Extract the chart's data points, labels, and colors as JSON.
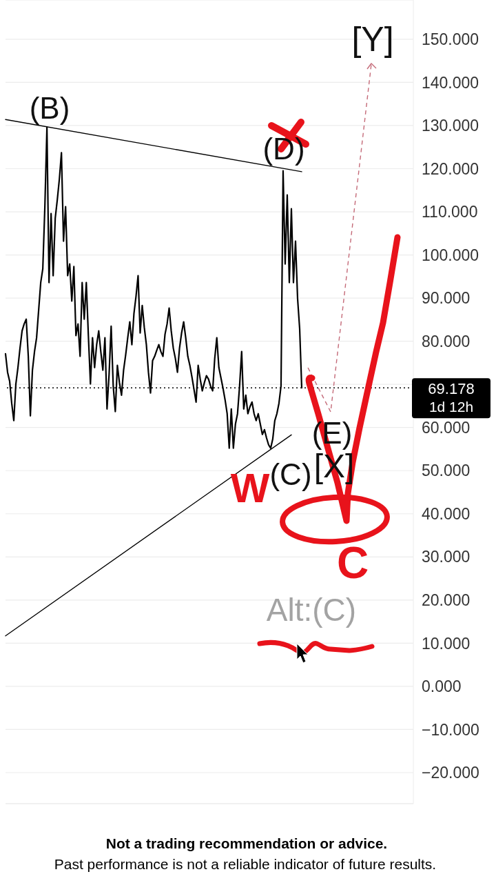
{
  "chart_data": {
    "type": "line",
    "categories": [
      null,
      null,
      null,
      null,
      null,
      null,
      null,
      null,
      null,
      null,
      null,
      null,
      null,
      null,
      null,
      null,
      null,
      null,
      null,
      null,
      null,
      null,
      null,
      null,
      null,
      null,
      null,
      null,
      null,
      null,
      null,
      null,
      null,
      null,
      null,
      null,
      null,
      null,
      null,
      null,
      null,
      null,
      null,
      null,
      null,
      null,
      null,
      null,
      null,
      null,
      null,
      null,
      null,
      null,
      null,
      null,
      null,
      null,
      null,
      null,
      null,
      null,
      null,
      null,
      null,
      null,
      null,
      null,
      null,
      null,
      null,
      null,
      null,
      null,
      null,
      null,
      null,
      null,
      null,
      null,
      null,
      null,
      null,
      null,
      null,
      null,
      null,
      null,
      null,
      null,
      null,
      null,
      null,
      null,
      null,
      null,
      null,
      null,
      null,
      null,
      null,
      null,
      null,
      null,
      null,
      null,
      null,
      null,
      null,
      null,
      null,
      null,
      null,
      null,
      null,
      null,
      null,
      null,
      null,
      null,
      null,
      null,
      null,
      null,
      null,
      null,
      null,
      null,
      null,
      null,
      null,
      null,
      null,
      null,
      null,
      null,
      null,
      null,
      null,
      null,
      null,
      null,
      null,
      null
    ],
    "series": [
      {
        "color": "#000000",
        "values": [
          77.1,
          72.8,
          70.7,
          65.6,
          61.6,
          70.1,
          73.9,
          78.4,
          82.4,
          84.0,
          85.1,
          76.5,
          62.7,
          73.3,
          77.6,
          80.8,
          87.2,
          93.6,
          96.8,
          111.2,
          129.6,
          93.6,
          109.6,
          95.2,
          108.5,
          112.8,
          117.6,
          123.7,
          103.2,
          111.2,
          95.2,
          97.9,
          89.3,
          97.3,
          81.3,
          84.0,
          76.5,
          93.6,
          85.1,
          93.6,
          81.3,
          70.1,
          80.8,
          73.9,
          79.2,
          82.4,
          77.6,
          73.3,
          80.8,
          64.3,
          72.3,
          83.5,
          69.6,
          63.7,
          74.4,
          70.4,
          67.5,
          73.3,
          76.8,
          80.8,
          84.5,
          79.2,
          86.4,
          90.4,
          95.2,
          81.9,
          88.3,
          83.2,
          79.2,
          72.8,
          68.0,
          75.5,
          76.5,
          77.9,
          79.2,
          77.6,
          76.5,
          81.6,
          84.0,
          87.7,
          82.4,
          78.4,
          76.0,
          72.8,
          78.4,
          81.9,
          84.5,
          80.8,
          76.5,
          74.4,
          71.7,
          68.8,
          65.9,
          74.4,
          71.2,
          68.5,
          70.4,
          72.0,
          71.2,
          69.6,
          68.5,
          76.0,
          80.8,
          73.9,
          71.5,
          69.1,
          66.4,
          63.2,
          55.2,
          64.3,
          55.2,
          60.8,
          63.2,
          69.6,
          77.6,
          64.3,
          67.5,
          63.2,
          64.8,
          65.9,
          63.2,
          61.6,
          63.2,
          60.8,
          58.4,
          59.5,
          57.6,
          56.0,
          55.2,
          57.3,
          61.6,
          63.2,
          65.6,
          69.6,
          119.5,
          97.9,
          113.9,
          93.6,
          110.7,
          93.6,
          103.2,
          89.9,
          82.9,
          69.2
        ]
      },
      {
        "color": "#000000",
        "values": [
          131.4,
          null,
          null,
          null,
          null,
          null,
          null,
          null,
          null,
          null,
          null,
          null,
          null,
          null,
          null,
          null,
          null,
          null,
          null,
          null,
          null,
          null,
          null,
          null,
          null,
          null,
          null,
          null,
          null,
          null,
          null,
          null,
          null,
          null,
          null,
          null,
          null,
          null,
          null,
          null,
          null,
          null,
          null,
          null,
          null,
          null,
          null,
          null,
          null,
          null,
          null,
          null,
          null,
          null,
          null,
          null,
          null,
          null,
          null,
          null,
          null,
          null,
          null,
          null,
          null,
          null,
          null,
          null,
          null,
          null,
          null,
          null,
          null,
          null,
          null,
          null,
          null,
          null,
          null,
          null,
          null,
          null,
          null,
          null,
          null,
          null,
          null,
          null,
          null,
          null,
          null,
          null,
          null,
          null,
          null,
          null,
          null,
          null,
          null,
          null,
          null,
          null,
          null,
          null,
          null,
          null,
          null,
          null,
          null,
          null,
          null,
          null,
          null,
          null,
          null,
          null,
          null,
          null,
          null,
          null,
          null,
          null,
          null,
          null,
          null,
          null,
          null,
          null,
          null,
          null,
          null,
          null,
          null,
          null,
          null,
          null,
          null,
          null,
          null,
          null,
          null,
          null,
          null,
          119.3
        ]
      },
      {
        "color": "#000000",
        "values": [
          11.7,
          null,
          null,
          null,
          null,
          null,
          null,
          null,
          null,
          null,
          null,
          null,
          null,
          null,
          null,
          null,
          null,
          null,
          null,
          null,
          null,
          null,
          null,
          null,
          null,
          null,
          null,
          null,
          null,
          null,
          null,
          null,
          null,
          null,
          null,
          null,
          null,
          null,
          null,
          null,
          null,
          null,
          null,
          null,
          null,
          null,
          null,
          null,
          null,
          null,
          null,
          null,
          null,
          null,
          null,
          null,
          null,
          null,
          null,
          null,
          null,
          null,
          null,
          null,
          null,
          null,
          null,
          null,
          null,
          null,
          null,
          null,
          null,
          null,
          null,
          null,
          null,
          null,
          null,
          null,
          null,
          null,
          null,
          null,
          null,
          null,
          null,
          null,
          null,
          null,
          null,
          null,
          null,
          null,
          null,
          null,
          null,
          null,
          null,
          null,
          null,
          null,
          null,
          null,
          null,
          null,
          null,
          null,
          null,
          null,
          null,
          null,
          null,
          null,
          null,
          null,
          null,
          null,
          null,
          null,
          null,
          null,
          null,
          null,
          null,
          null,
          null,
          null,
          null,
          null,
          null,
          null,
          null,
          null,
          null,
          null,
          null,
          null,
          58.3,
          null,
          null,
          null,
          null,
          null
        ]
      }
    ],
    "ylim": [
      -27.2,
      159.1
    ],
    "yticks": [
      {
        "value": 150,
        "label": "150.000"
      },
      {
        "value": 140,
        "label": "140.000"
      },
      {
        "value": 130,
        "label": "130.000"
      },
      {
        "value": 120,
        "label": "120.000"
      },
      {
        "value": 110,
        "label": "110.000"
      },
      {
        "value": 100,
        "label": "100.000"
      },
      {
        "value": 90,
        "label": "90.000"
      },
      {
        "value": 80,
        "label": "80.000"
      },
      {
        "value": 70,
        "label": null
      },
      {
        "value": 60,
        "label": "60.000"
      },
      {
        "value": 50,
        "label": "50.000"
      },
      {
        "value": 40,
        "label": "40.000"
      },
      {
        "value": 30,
        "label": "30.000"
      },
      {
        "value": 20,
        "label": "20.000"
      },
      {
        "value": 10,
        "label": "10.000"
      },
      {
        "value": 0,
        "label": "0.000"
      },
      {
        "value": -10,
        "label": "−10.000"
      },
      {
        "value": -20,
        "label": "−20.000"
      }
    ],
    "grid": "y",
    "ref_lines": [
      {
        "axis": "y",
        "value": 69.178,
        "label": "69.178",
        "color": "#000000",
        "line_style": "dotted"
      }
    ],
    "annotations": [
      {
        "text": "(B)",
        "y": 129.6
      },
      {
        "text": "(D)",
        "y": 119.5
      },
      "(C)",
      "(E)",
      "[X]",
      "[Y]",
      "Alt:(C)",
      "W",
      "C",
      "1d 12h",
      "Not a trading recommendation or advice.",
      "Past performance is not a reliable indicator of future results."
    ]
  }
}
